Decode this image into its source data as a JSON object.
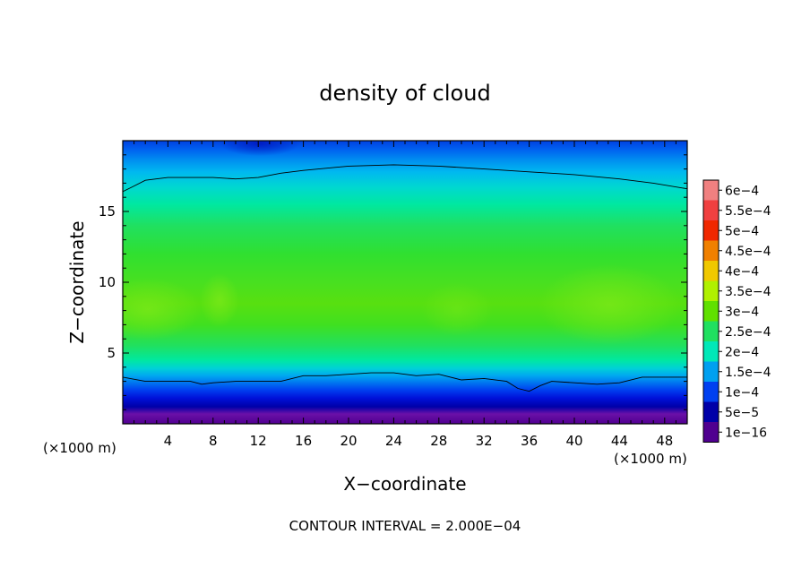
{
  "chart_data": {
    "type": "heatmap",
    "title": "density of cloud",
    "xlabel": "X−coordinate",
    "ylabel": "Z−coordinate",
    "x_unit_left": "(×1000 m)",
    "x_unit_right": "(×1000 m)",
    "footer": "CONTOUR INTERVAL = 2.000E−04",
    "xlim": [
      0,
      50
    ],
    "ylim": [
      0,
      20
    ],
    "x_ticks": [
      "4",
      "8",
      "12",
      "16",
      "20",
      "24",
      "28",
      "32",
      "36",
      "40",
      "44",
      "48"
    ],
    "x_tick_values": [
      4,
      8,
      12,
      16,
      20,
      24,
      28,
      32,
      36,
      40,
      44,
      48
    ],
    "y_ticks": [
      "5",
      "10",
      "15"
    ],
    "y_tick_values": [
      5,
      10,
      15
    ],
    "colorbar": {
      "labels": [
        "6e−4",
        "5.5e−4",
        "5e−4",
        "4.5e−4",
        "4e−4",
        "3.5e−4",
        "3e−4",
        "2.5e−4",
        "2e−4",
        "1.5e−4",
        "1e−4",
        "5e−5",
        "1e−16"
      ],
      "colors": [
        "#f08080",
        "#f04040",
        "#f02800",
        "#f08000",
        "#f0c800",
        "#b0f000",
        "#60e000",
        "#20e060",
        "#00e8b8",
        "#00a0f0",
        "#0040f0",
        "#0000a8",
        "#500090"
      ]
    },
    "contours": [
      {
        "level": 0.0001,
        "points": [
          [
            0,
            3.3
          ],
          [
            2,
            3.0
          ],
          [
            4,
            3.0
          ],
          [
            6,
            3.0
          ],
          [
            7,
            2.8
          ],
          [
            8,
            2.9
          ],
          [
            10,
            3.0
          ],
          [
            12,
            3.0
          ],
          [
            14,
            3.0
          ],
          [
            16,
            3.4
          ],
          [
            18,
            3.4
          ],
          [
            20,
            3.5
          ],
          [
            22,
            3.6
          ],
          [
            24,
            3.6
          ],
          [
            26,
            3.4
          ],
          [
            28,
            3.5
          ],
          [
            30,
            3.1
          ],
          [
            32,
            3.2
          ],
          [
            34,
            3.0
          ],
          [
            35,
            2.5
          ],
          [
            36,
            2.3
          ],
          [
            37,
            2.7
          ],
          [
            38,
            3.0
          ],
          [
            40,
            2.9
          ],
          [
            42,
            2.8
          ],
          [
            44,
            2.9
          ],
          [
            46,
            3.3
          ],
          [
            48,
            3.3
          ],
          [
            50,
            3.3
          ]
        ]
      },
      {
        "level": 0.0001,
        "points": [
          [
            0,
            16.4
          ],
          [
            1,
            16.8
          ],
          [
            2,
            17.2
          ],
          [
            4,
            17.4
          ],
          [
            6,
            17.4
          ],
          [
            8,
            17.4
          ],
          [
            10,
            17.3
          ],
          [
            12,
            17.4
          ],
          [
            14,
            17.7
          ],
          [
            16,
            17.9
          ],
          [
            20,
            18.2
          ],
          [
            24,
            18.3
          ],
          [
            28,
            18.2
          ],
          [
            32,
            18.0
          ],
          [
            36,
            17.8
          ],
          [
            40,
            17.6
          ],
          [
            44,
            17.3
          ],
          [
            47,
            17.0
          ],
          [
            50,
            16.6
          ]
        ]
      }
    ],
    "bands": [
      {
        "z": 0.0,
        "color": "#500090"
      },
      {
        "z": 0.7,
        "color": "#6a10a8"
      },
      {
        "z": 1.2,
        "color": "#0000a8"
      },
      {
        "z": 1.8,
        "color": "#0010d8"
      },
      {
        "z": 2.4,
        "color": "#0040f0"
      },
      {
        "z": 3.0,
        "color": "#0080f0"
      },
      {
        "z": 3.4,
        "color": "#00a8f0"
      },
      {
        "z": 3.9,
        "color": "#00d0d8"
      },
      {
        "z": 4.5,
        "color": "#00e8a0"
      },
      {
        "z": 5.5,
        "color": "#20e060"
      },
      {
        "z": 7.0,
        "color": "#40e020"
      },
      {
        "z": 8.5,
        "color": "#58e010"
      },
      {
        "z": 10.0,
        "color": "#48e020"
      },
      {
        "z": 12.0,
        "color": "#30e030"
      },
      {
        "z": 14.0,
        "color": "#20e060"
      },
      {
        "z": 15.5,
        "color": "#00e8a0"
      },
      {
        "z": 16.7,
        "color": "#00d8d0"
      },
      {
        "z": 17.8,
        "color": "#00b8f0"
      },
      {
        "z": 18.6,
        "color": "#0090f0"
      },
      {
        "z": 19.4,
        "color": "#0060f0"
      },
      {
        "z": 20.0,
        "color": "#0040e0"
      }
    ]
  }
}
